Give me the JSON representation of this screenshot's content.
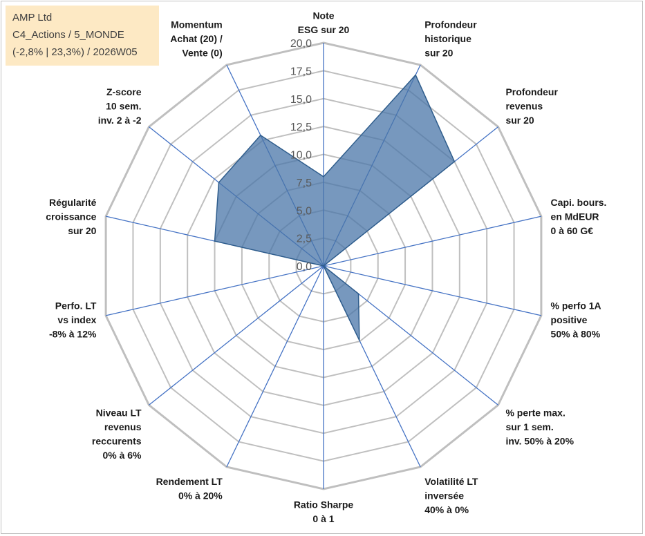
{
  "header": {
    "line1": "AMP Ltd",
    "line2": "C4_Actions / 5_MONDE",
    "line3": "(-2,8% | 23,3%) / 2026W05"
  },
  "chart_data": {
    "type": "radar",
    "rmin": 0,
    "rmax": 20,
    "tick_labels": [
      "0,0",
      "2,5",
      "5,0",
      "7,5",
      "10,0",
      "12,5",
      "15,0",
      "17,5",
      "20,0"
    ],
    "ticks": [
      0,
      2.5,
      5,
      7.5,
      10,
      12.5,
      15,
      17.5,
      20
    ],
    "grid": true,
    "axes": [
      {
        "label_lines": [
          "Note",
          "ESG sur 20"
        ],
        "value": 8
      },
      {
        "label_lines": [
          "Profondeur",
          "historique",
          "sur 20"
        ],
        "value": 19
      },
      {
        "label_lines": [
          "Profondeur",
          "revenus",
          "sur 20"
        ],
        "value": 15
      },
      {
        "label_lines": [
          "Capi. bours.",
          "en MdEUR",
          "0 à 60 G€"
        ],
        "value": 0
      },
      {
        "label_lines": [
          "% perfo 1A",
          "positive",
          "50% à 80%"
        ],
        "value": 0
      },
      {
        "label_lines": [
          "% perte max.",
          "sur 1 sem.",
          "inv. 50% à 20%"
        ],
        "value": 4
      },
      {
        "label_lines": [
          "Volatilité LT",
          "inversée",
          "40% à 0%"
        ],
        "value": 7.4
      },
      {
        "label_lines": [
          "Ratio Sharpe",
          "0 à 1"
        ],
        "value": 0
      },
      {
        "label_lines": [
          "Rendement LT",
          "0% à 20%"
        ],
        "value": 0
      },
      {
        "label_lines": [
          "Niveau LT",
          "revenus",
          "reccurents",
          "0% à 6%"
        ],
        "value": 0
      },
      {
        "label_lines": [
          "Perfo. LT",
          "vs index",
          "-8% à 12%"
        ],
        "value": 0
      },
      {
        "label_lines": [
          "Régularité",
          "croissance",
          "sur 20"
        ],
        "value": 10
      },
      {
        "label_lines": [
          "Z-score",
          "10 sem.",
          "inv. 2 à -2"
        ],
        "value": 12
      },
      {
        "label_lines": [
          "Momentum",
          "Achat (20) /",
          "Vente (0)"
        ],
        "value": 13
      }
    ],
    "colors": {
      "fill": "#4a76a8",
      "stroke": "#2f5d8c",
      "spoke": "#4472c4",
      "grid": "#bfbfbf"
    }
  }
}
